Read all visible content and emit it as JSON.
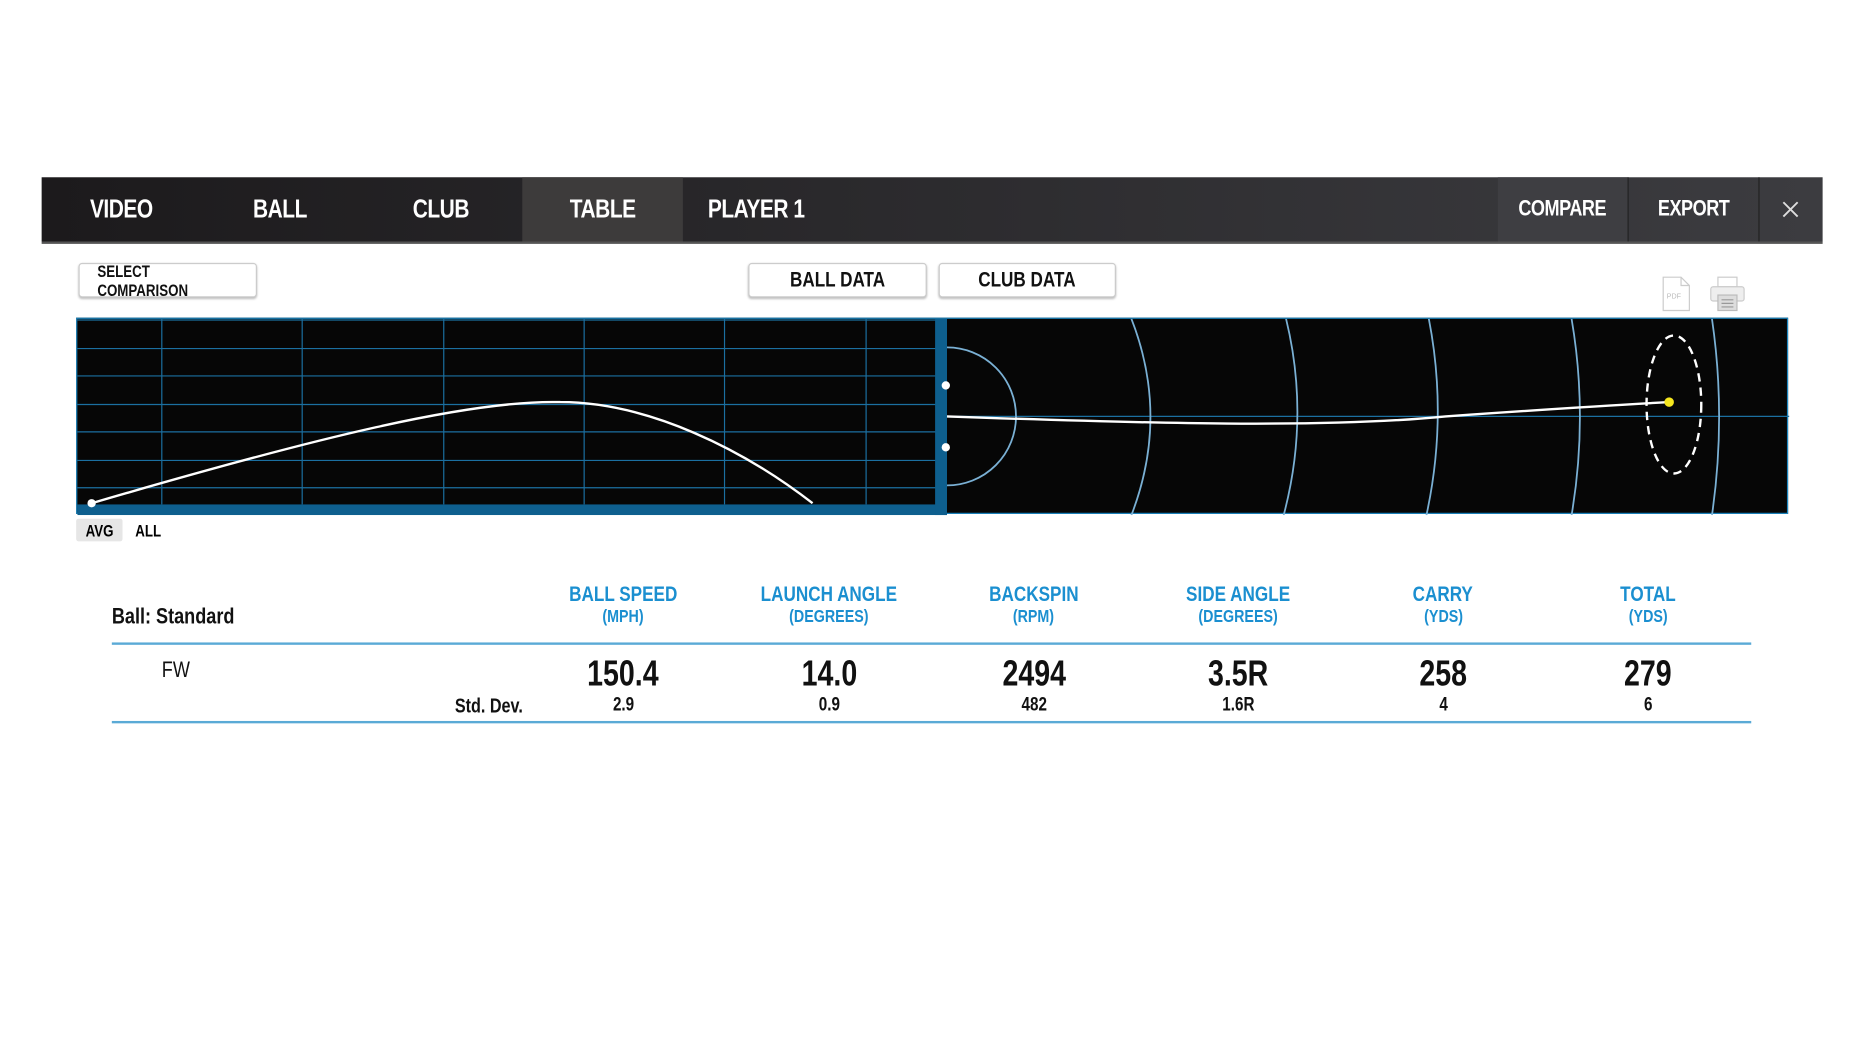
{
  "nav": {
    "tabs": [
      {
        "label": "VIDEO"
      },
      {
        "label": "BALL"
      },
      {
        "label": "CLUB"
      },
      {
        "label": "TABLE",
        "active": true
      },
      {
        "label": "PLAYER 1"
      }
    ],
    "compare_label": "COMPARE",
    "export_label": "EXPORT",
    "close_icon": "close-icon"
  },
  "toolbar": {
    "select_comparison": "SELECT COMPARISON",
    "ball_data": "BALL DATA",
    "club_data": "CLUB DATA",
    "pdf_icon": "pdf-file-icon",
    "pdf_text": "PDF",
    "print_icon": "printer-icon"
  },
  "view_toggle": {
    "avg": "AVG",
    "all": "ALL",
    "selected": "AVG"
  },
  "colors": {
    "accent": "#1b8fd0",
    "chart_bg": "#060606",
    "grid": "#1b6fa0",
    "target_dot": "#f5e61e"
  },
  "table": {
    "ball_label": "Ball: Standard",
    "columns": [
      {
        "title": "BALL SPEED",
        "unit": "(MPH)"
      },
      {
        "title": "LAUNCH ANGLE",
        "unit": "(DEGREES)"
      },
      {
        "title": "BACKSPIN",
        "unit": "(RPM)"
      },
      {
        "title": "SIDE ANGLE",
        "unit": "(DEGREES)"
      },
      {
        "title": "CARRY",
        "unit": "(YDS)"
      },
      {
        "title": "TOTAL",
        "unit": "(YDS)"
      }
    ],
    "row": {
      "club": "FW",
      "std_label": "Std. Dev.",
      "values": [
        "150.4",
        "14.0",
        "2494",
        "3.5R",
        "258",
        "279"
      ],
      "std_dev": [
        "2.9",
        "0.9",
        "482",
        "1.6R",
        "4",
        "6"
      ]
    }
  }
}
